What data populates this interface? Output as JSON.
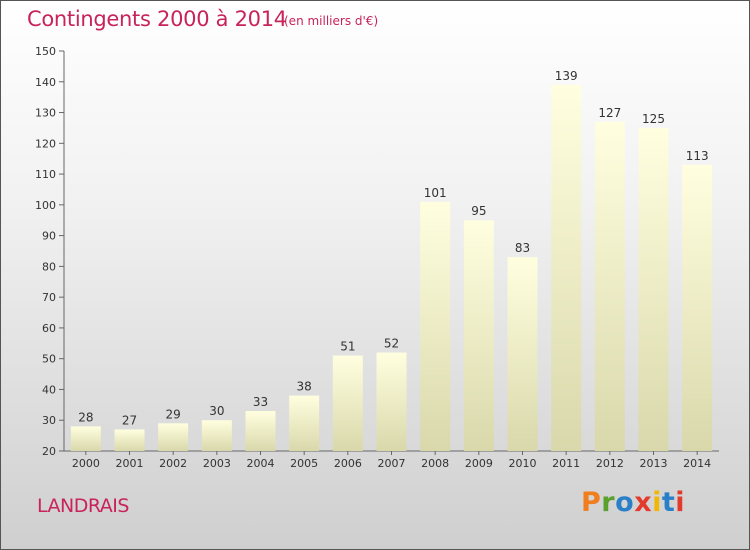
{
  "header": {
    "title": "Contingents 2000 à 2014",
    "subtitle": "(en milliers d'€)"
  },
  "footer": {
    "place": "LANDRAIS",
    "logo": "Proxiti",
    "logo_colors": [
      "#f07d1e",
      "#5aa02c",
      "#2a7fc9",
      "#e23b2e",
      "#f2b705",
      "#2a7fc9",
      "#e23b2e"
    ]
  },
  "colors": {
    "title": "#c8235a",
    "bar_top": "#ffffe0",
    "bar_bottom": "#d9d8ab"
  },
  "chart_data": {
    "type": "bar",
    "title": "Contingents 2000 à 2014",
    "subtitle": "(en milliers d'€)",
    "categories": [
      "2000",
      "2001",
      "2002",
      "2003",
      "2004",
      "2005",
      "2006",
      "2007",
      "2008",
      "2009",
      "2010",
      "2011",
      "2012",
      "2013",
      "2014"
    ],
    "values": [
      28,
      27,
      29,
      30,
      33,
      38,
      51,
      52,
      101,
      95,
      83,
      139,
      127,
      125,
      113
    ],
    "ylim": [
      20,
      150
    ],
    "yticks": [
      20,
      30,
      40,
      50,
      60,
      70,
      80,
      90,
      100,
      110,
      120,
      130,
      140,
      150
    ],
    "grid": false,
    "legend": "none"
  }
}
